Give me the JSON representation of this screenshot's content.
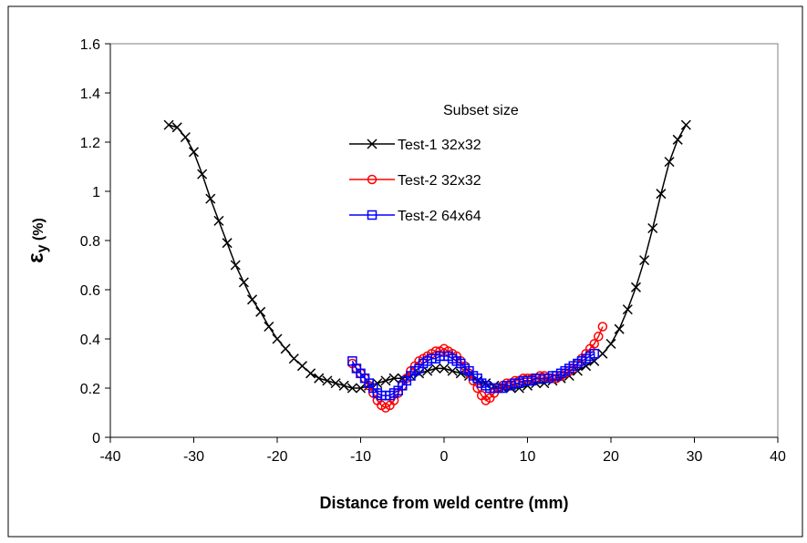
{
  "chart_data": {
    "type": "line",
    "title": "",
    "xlabel": "Distance from weld centre (mm)",
    "ylabel_main": "ε",
    "ylabel_sub": "y",
    "ylabel_unit": " (%)",
    "xlim": [
      -40,
      40
    ],
    "ylim": [
      0,
      1.6
    ],
    "x_ticks": [
      -40,
      -30,
      -20,
      -10,
      0,
      10,
      20,
      30,
      40
    ],
    "y_ticks": [
      0,
      0.2,
      0.4,
      0.6,
      0.8,
      1,
      1.2,
      1.4,
      1.6
    ],
    "x_tick_labels": [
      "-40",
      "-30",
      "-20",
      "-10",
      "0",
      "10",
      "20",
      "30",
      "40"
    ],
    "y_tick_labels": [
      "0",
      "0.2",
      "0.4",
      "0.6",
      "0.8",
      "1",
      "1.2",
      "1.4",
      "1.6"
    ],
    "grid": false,
    "legend": {
      "title": "Subset size",
      "position": "top-center"
    },
    "series": [
      {
        "name": "Test-1 32x32",
        "color": "#000000",
        "marker": "x",
        "x": [
          -33.0,
          -32.0,
          -31.0,
          -30.0,
          -29.0,
          -28.0,
          -27.0,
          -26.0,
          -25.0,
          -24.0,
          -23.0,
          -22.0,
          -21.0,
          -20.0,
          -19.0,
          -18.0,
          -17.0,
          -16.0,
          -15.0,
          -14.0,
          -13.0,
          -12.0,
          -11.0,
          -10.0,
          -9.0,
          -8.0,
          -7.0,
          -6.0,
          -5.0,
          -4.0,
          -3.0,
          -2.0,
          -1.0,
          0.0,
          1.0,
          2.0,
          3.0,
          4.0,
          5.0,
          6.0,
          7.0,
          8.0,
          9.0,
          10.0,
          11.0,
          12.0,
          13.0,
          14.0,
          15.0,
          16.0,
          17.0,
          18.0,
          19.0,
          20.0,
          21.0,
          22.0,
          23.0,
          24.0,
          25.0,
          26.0,
          27.0,
          28.0,
          29.0
        ],
        "y": [
          1.27,
          1.26,
          1.22,
          1.16,
          1.07,
          0.97,
          0.88,
          0.79,
          0.7,
          0.63,
          0.56,
          0.51,
          0.45,
          0.4,
          0.36,
          0.32,
          0.29,
          0.26,
          0.24,
          0.23,
          0.22,
          0.21,
          0.2,
          0.2,
          0.21,
          0.22,
          0.23,
          0.24,
          0.24,
          0.25,
          0.26,
          0.27,
          0.28,
          0.28,
          0.27,
          0.26,
          0.25,
          0.23,
          0.22,
          0.21,
          0.2,
          0.2,
          0.2,
          0.21,
          0.22,
          0.22,
          0.23,
          0.24,
          0.25,
          0.27,
          0.29,
          0.31,
          0.34,
          0.38,
          0.44,
          0.52,
          0.61,
          0.72,
          0.85,
          0.99,
          1.12,
          1.21,
          1.27
        ]
      },
      {
        "name": "Test-2 32x32",
        "color": "#ff0000",
        "marker": "o",
        "x": [
          -11.0,
          -10.5,
          -10.0,
          -9.5,
          -9.0,
          -8.5,
          -8.0,
          -7.5,
          -7.0,
          -6.5,
          -6.0,
          -5.5,
          -5.0,
          -4.5,
          -4.0,
          -3.5,
          -3.0,
          -2.5,
          -2.0,
          -1.5,
          -1.0,
          -0.5,
          0.0,
          0.5,
          1.0,
          1.5,
          2.0,
          2.5,
          3.0,
          3.5,
          4.0,
          4.5,
          5.0,
          5.5,
          6.0,
          6.5,
          7.0,
          7.5,
          8.0,
          8.5,
          9.0,
          9.5,
          10.0,
          10.5,
          11.0,
          11.5,
          12.0,
          12.5,
          13.0,
          13.5,
          14.0,
          14.5,
          15.0,
          15.5,
          16.0,
          16.5,
          17.0,
          17.5,
          18.0,
          18.5,
          19.0
        ],
        "y": [
          0.3,
          0.28,
          0.26,
          0.24,
          0.21,
          0.18,
          0.15,
          0.13,
          0.12,
          0.13,
          0.15,
          0.18,
          0.21,
          0.24,
          0.27,
          0.29,
          0.31,
          0.32,
          0.33,
          0.34,
          0.35,
          0.35,
          0.36,
          0.35,
          0.34,
          0.33,
          0.31,
          0.29,
          0.26,
          0.23,
          0.2,
          0.17,
          0.15,
          0.16,
          0.18,
          0.2,
          0.21,
          0.22,
          0.22,
          0.23,
          0.23,
          0.24,
          0.24,
          0.24,
          0.24,
          0.25,
          0.25,
          0.24,
          0.24,
          0.24,
          0.25,
          0.26,
          0.27,
          0.28,
          0.3,
          0.32,
          0.34,
          0.36,
          0.38,
          0.41,
          0.45
        ]
      },
      {
        "name": "Test-2 64x64",
        "color": "#0000ff",
        "marker": "s",
        "x": [
          -11.0,
          -10.5,
          -10.0,
          -9.5,
          -9.0,
          -8.5,
          -8.0,
          -7.5,
          -7.0,
          -6.5,
          -6.0,
          -5.5,
          -5.0,
          -4.5,
          -4.0,
          -3.5,
          -3.0,
          -2.5,
          -2.0,
          -1.5,
          -1.0,
          -0.5,
          0.0,
          0.5,
          1.0,
          1.5,
          2.0,
          2.5,
          3.0,
          3.5,
          4.0,
          4.5,
          5.0,
          5.5,
          6.0,
          6.5,
          7.0,
          7.5,
          8.0,
          8.5,
          9.0,
          9.5,
          10.0,
          10.5,
          11.0,
          11.5,
          12.0,
          12.5,
          13.0,
          13.5,
          14.0,
          14.5,
          15.0,
          15.5,
          16.0,
          16.5,
          17.0,
          17.5,
          18.0
        ],
        "y": [
          0.31,
          0.28,
          0.26,
          0.24,
          0.22,
          0.2,
          0.18,
          0.17,
          0.17,
          0.17,
          0.18,
          0.19,
          0.21,
          0.23,
          0.25,
          0.27,
          0.28,
          0.3,
          0.31,
          0.32,
          0.32,
          0.33,
          0.33,
          0.33,
          0.32,
          0.31,
          0.3,
          0.28,
          0.27,
          0.25,
          0.24,
          0.22,
          0.21,
          0.2,
          0.2,
          0.2,
          0.2,
          0.21,
          0.21,
          0.22,
          0.22,
          0.23,
          0.23,
          0.23,
          0.24,
          0.24,
          0.24,
          0.24,
          0.25,
          0.25,
          0.26,
          0.27,
          0.28,
          0.29,
          0.3,
          0.31,
          0.32,
          0.33,
          0.34
        ]
      }
    ]
  }
}
